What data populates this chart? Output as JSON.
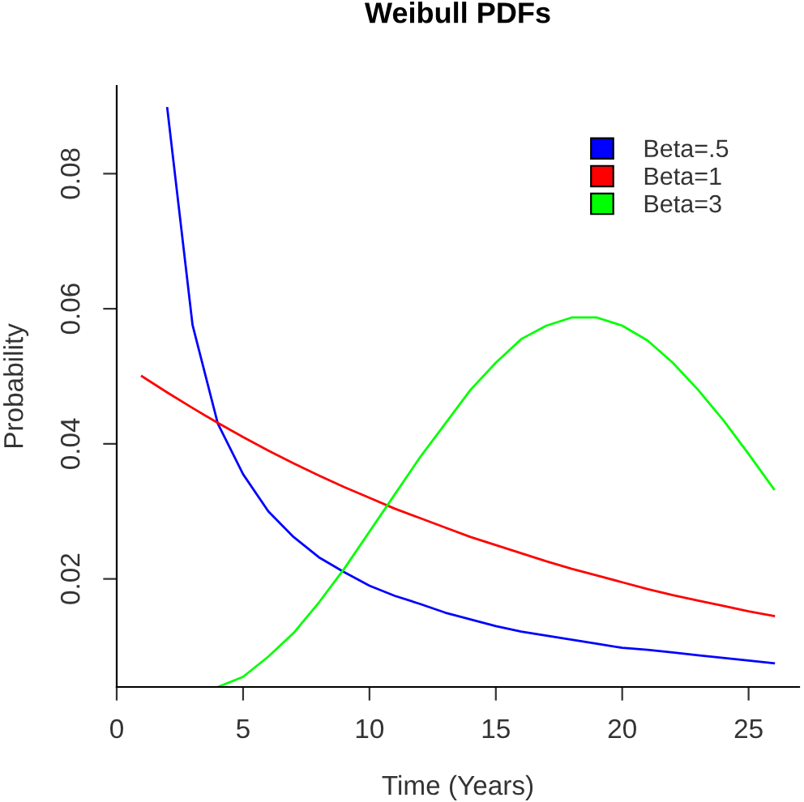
{
  "chart_data": {
    "type": "line",
    "title": "Weibull PDFs",
    "xlabel": "Time (Years)",
    "ylabel": "Probability",
    "xlim": [
      0,
      27
    ],
    "xticks": [
      0,
      5,
      10,
      15,
      20,
      25
    ],
    "ylim": [
      0.004,
      0.093
    ],
    "yticks": [
      0.02,
      0.04,
      0.06,
      0.08
    ],
    "grid": false,
    "legend": "top right",
    "marker": "none",
    "line_style": "solid",
    "series": [
      {
        "name": "Beta=.5",
        "color": "#0000ff",
        "x": [
          2,
          3,
          4,
          5,
          6,
          7,
          8,
          9,
          10,
          11,
          12,
          13,
          14,
          15,
          16,
          17,
          18,
          19,
          20,
          21,
          22,
          23,
          24,
          25,
          26
        ],
        "values": [
          0.0897,
          0.0576,
          0.043,
          0.0355,
          0.03,
          0.0262,
          0.0232,
          0.021,
          0.019,
          0.0175,
          0.0163,
          0.015,
          0.014,
          0.013,
          0.0122,
          0.0116,
          0.011,
          0.0104,
          0.0098,
          0.0095,
          0.0091,
          0.0087,
          0.0083,
          0.0079,
          0.0075
        ]
      },
      {
        "name": "Beta=1",
        "color": "#ff0000",
        "x": [
          1,
          2,
          3,
          4,
          5,
          6,
          7,
          8,
          9,
          10,
          11,
          12,
          13,
          14,
          15,
          16,
          17,
          18,
          19,
          20,
          21,
          22,
          23,
          24,
          25,
          26
        ],
        "values": [
          0.05,
          0.0476,
          0.0453,
          0.0431,
          0.041,
          0.039,
          0.0371,
          0.0353,
          0.0336,
          0.032,
          0.0304,
          0.029,
          0.0276,
          0.0262,
          0.025,
          0.0238,
          0.0226,
          0.0215,
          0.0205,
          0.0195,
          0.0185,
          0.0176,
          0.0168,
          0.016,
          0.0152,
          0.0145
        ]
      },
      {
        "name": "Beta=3",
        "color": "#00ff00",
        "x": [
          4,
          5,
          6,
          7,
          8,
          9,
          10,
          11,
          12,
          13,
          14,
          15,
          16,
          17,
          18,
          19,
          20,
          21,
          22,
          23,
          24,
          25,
          26
        ],
        "values": [
          0.004,
          0.0055,
          0.0085,
          0.012,
          0.0165,
          0.0215,
          0.027,
          0.0325,
          0.038,
          0.043,
          0.048,
          0.052,
          0.0555,
          0.0575,
          0.0587,
          0.0587,
          0.0575,
          0.0553,
          0.052,
          0.048,
          0.0435,
          0.0385,
          0.0333
        ]
      }
    ]
  }
}
